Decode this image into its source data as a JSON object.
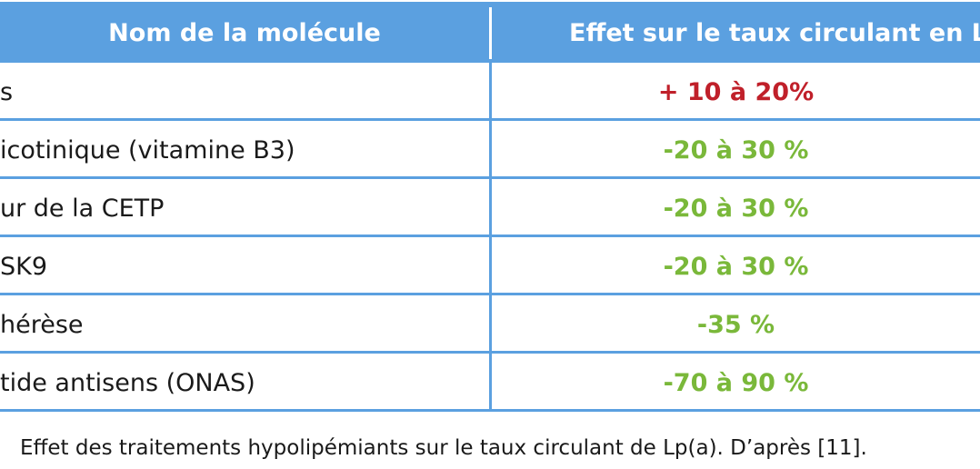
{
  "table": {
    "headers": {
      "name": "Nom de la molécule",
      "effect": "Effet sur le taux circulant en Lp("
    },
    "rows": [
      {
        "name": "s",
        "effect": "+ 10 à 20%",
        "direction": "up"
      },
      {
        "name": "icotinique (vitamine B3)",
        "effect": "-20 à 30 %",
        "direction": "down"
      },
      {
        "name": "ur de la CETP",
        "effect": "-20 à 30 %",
        "direction": "down"
      },
      {
        "name": "SK9",
        "effect": "-20 à 30 %",
        "direction": "down"
      },
      {
        "name": "hérèse",
        "effect": "-35 %",
        "direction": "down"
      },
      {
        "name": "tide antisens (ONAS)",
        "effect": "-70 à 90 %",
        "direction": "down"
      }
    ]
  },
  "caption": "Effet des traitements hypolipémiants sur le taux circulant de Lp(a). D’après [11].",
  "colors": {
    "header_bg": "#5ba0e0",
    "increase": "#c0202a",
    "decrease": "#7ab83a"
  }
}
